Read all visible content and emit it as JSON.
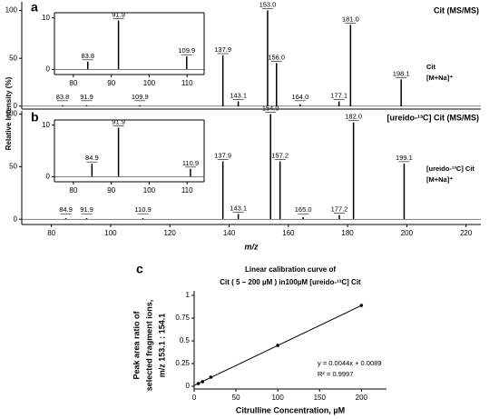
{
  "chart_data": [
    {
      "type": "spectrum",
      "panel": "a",
      "title": "Cit (MS/MS)",
      "ylabel": "Relative Intensity (%)",
      "annotations": [
        "Cit",
        "[M+Na]⁺"
      ],
      "x": [
        83.8,
        91.9,
        109.9,
        137.9,
        143.1,
        153.0,
        156.0,
        164.0,
        177.1,
        181.0,
        198.1
      ],
      "x_labels": [
        "83.8",
        "91.9",
        "109.9",
        "137.9",
        "143.1",
        "153.0",
        "156.0",
        "164.0",
        "177.1",
        "181.0",
        "198.1"
      ],
      "values": [
        1,
        1,
        1,
        53,
        5,
        100,
        45,
        2,
        5,
        85,
        28
      ],
      "color": "#000000",
      "xlim": [
        70,
        225
      ],
      "ylim": [
        -3,
        109
      ],
      "yticks": [
        0,
        50,
        100
      ],
      "xticks": []
    },
    {
      "type": "spectrum",
      "x": [
        83.8,
        91.9,
        109.9
      ],
      "x_labels": [
        "83.8",
        "91.9",
        "109.9"
      ],
      "values": [
        1.5,
        9.5,
        2.5
      ],
      "color": "#000000",
      "xlim": [
        75,
        114.5
      ],
      "ylim": [
        -1,
        11
      ],
      "yticks": [
        0,
        10
      ],
      "xticks": [
        80,
        90,
        100,
        110
      ]
    },
    {
      "type": "spectrum",
      "panel": "b",
      "title": "[ureido-¹³C] Cit (MS/MS)",
      "xlabel": "m/z",
      "annotations": [
        "[ureido-¹³C] Cit",
        "[M+Na]⁺"
      ],
      "x": [
        84.9,
        91.9,
        110.9,
        137.9,
        143.1,
        154.0,
        157.2,
        165.0,
        177.2,
        182.0,
        199.1
      ],
      "x_labels": [
        "84.9",
        "91.9",
        "110.9",
        "137.9",
        "143.1",
        "154.0",
        "157.2",
        "165.0",
        "177.2",
        "182.0",
        "199.1"
      ],
      "values": [
        1,
        1,
        1,
        55,
        5,
        100,
        55,
        2,
        4,
        92,
        53
      ],
      "color": "#000000",
      "xlim": [
        70,
        225
      ],
      "ylim": [
        -5,
        103
      ],
      "yticks": [
        0,
        50,
        100
      ],
      "xticks": [
        80,
        100,
        120,
        140,
        160,
        180,
        200,
        220
      ]
    },
    {
      "type": "spectrum",
      "x": [
        84.9,
        91.9,
        110.9
      ],
      "x_labels": [
        "84.9",
        "91.9",
        "110.9"
      ],
      "values": [
        2.5,
        9.5,
        1.5
      ],
      "color": "#000000",
      "xlim": [
        75,
        114.5
      ],
      "ylim": [
        -1,
        11
      ],
      "yticks": [
        0,
        10
      ],
      "xticks": [
        80,
        90,
        100,
        110
      ]
    },
    {
      "type": "scatter",
      "panel": "c",
      "title": [
        "Linear calibration curve of",
        "Cit ( 5 – 200 µM ) in100µM [ureido-¹³C] Cit"
      ],
      "ylabel": [
        "Peak area ratio of",
        "selected fragment ions,",
        "m/z 153.1 : 154.1"
      ],
      "xlabel": "Citrulline Concentration, µM",
      "annotations": [
        "y = 0.0044x + 0.0089",
        "R² = 0.9997"
      ],
      "x": [
        5,
        10,
        20,
        100,
        200
      ],
      "values": [
        0.03,
        0.05,
        0.1,
        0.45,
        0.89
      ],
      "errors": [
        0.005,
        0.005,
        0.005,
        0.02,
        0.01
      ],
      "fit": {
        "slope": 0.0044,
        "intercept": 0.0089
      },
      "color": "#000000",
      "xlim": [
        0,
        230
      ],
      "ylim": [
        -0.03,
        1.05
      ],
      "xticks": [
        0,
        50,
        100,
        150,
        200
      ],
      "yticks": [
        0,
        0.25,
        0.5,
        0.75,
        1
      ]
    }
  ]
}
